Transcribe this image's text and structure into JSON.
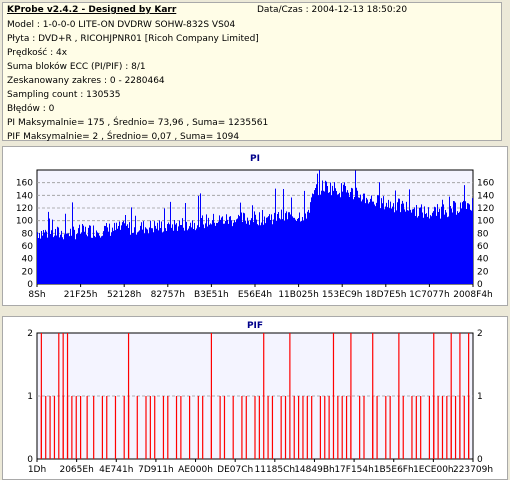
{
  "info": {
    "title": "KProbe v2.4.2 - Designed by Karr",
    "date": "Data/Czas : 2004-12-13 18:50:20",
    "lines": [
      "Model : 1-0-0-0 LITE-ON DVDRW SOHW-832S  VS04",
      "Płyta : DVD+R , RICOHJPNR01 [Ricoh Company Limited]",
      "Prędkość : 4x",
      "Suma bloków ECC (PI/PIF) : 8/1",
      "Zeskanowany zakres : 0 - 2280464",
      "Sampling count : 130535",
      "Błędów : 0",
      "PI Maksymalnie= 175 , Średnio= 73,96 , Suma= 1235561",
      "PIF Maksymalnie= 2 , Średnio= 0,07 , Suma= 1094"
    ]
  },
  "chart_data": [
    {
      "type": "area",
      "title": "PI",
      "ylim": [
        0,
        180
      ],
      "yticks": [
        0,
        20,
        40,
        60,
        80,
        100,
        120,
        140,
        160
      ],
      "x_ticks": [
        "8Sh",
        "21F25h",
        "52128h",
        "82757h",
        "B3E51h",
        "E56E4h",
        "11B025h",
        "153EC9h",
        "18D7E5h",
        "1C7077h",
        "2008F4h"
      ],
      "grid": true,
      "color": "#0000ff",
      "profile": [
        {
          "x": 0.0,
          "y": 82
        },
        {
          "x": 0.05,
          "y": 80
        },
        {
          "x": 0.12,
          "y": 84
        },
        {
          "x": 0.2,
          "y": 88
        },
        {
          "x": 0.3,
          "y": 92
        },
        {
          "x": 0.4,
          "y": 100
        },
        {
          "x": 0.48,
          "y": 103
        },
        {
          "x": 0.54,
          "y": 106
        },
        {
          "x": 0.6,
          "y": 108
        },
        {
          "x": 0.62,
          "y": 112
        },
        {
          "x": 0.64,
          "y": 148
        },
        {
          "x": 0.66,
          "y": 155
        },
        {
          "x": 0.72,
          "y": 145
        },
        {
          "x": 0.78,
          "y": 130
        },
        {
          "x": 0.84,
          "y": 122
        },
        {
          "x": 0.9,
          "y": 112
        },
        {
          "x": 0.95,
          "y": 118
        },
        {
          "x": 1.0,
          "y": 128
        }
      ]
    },
    {
      "type": "bar",
      "title": "PIF",
      "ylim": [
        0,
        2
      ],
      "yticks": [
        0,
        1,
        2
      ],
      "x_ticks": [
        "1Dh",
        "2065Eh",
        "4E741h",
        "7D911h",
        "AE000h",
        "DE07Ch",
        "11185Ch",
        "14849Bh",
        "17F154h",
        "1B5E6Fh",
        "1ECE00h",
        "223709h"
      ],
      "grid": true,
      "color": "#ff0000",
      "spikes_level1": [
        0.01,
        0.02,
        0.03,
        0.04,
        0.06,
        0.07,
        0.08,
        0.09,
        0.1,
        0.115,
        0.13,
        0.15,
        0.16,
        0.18,
        0.2,
        0.21,
        0.23,
        0.25,
        0.26,
        0.27,
        0.29,
        0.3,
        0.32,
        0.33,
        0.35,
        0.37,
        0.38,
        0.4,
        0.42,
        0.43,
        0.45,
        0.47,
        0.48,
        0.5,
        0.51,
        0.53,
        0.54,
        0.56,
        0.57,
        0.59,
        0.6,
        0.61,
        0.62,
        0.63,
        0.65,
        0.66,
        0.67,
        0.69,
        0.7,
        0.71,
        0.72,
        0.74,
        0.75,
        0.77,
        0.78,
        0.8,
        0.81,
        0.83,
        0.84,
        0.86,
        0.87,
        0.88,
        0.9,
        0.91,
        0.92,
        0.93,
        0.94,
        0.95,
        0.96,
        0.97,
        0.98,
        0.99
      ],
      "spikes_level2": [
        0.01,
        0.05,
        0.06,
        0.07,
        0.21,
        0.4,
        0.52,
        0.58,
        0.68,
        0.72,
        0.77,
        0.83,
        0.91,
        0.95,
        0.97,
        0.99
      ]
    }
  ]
}
